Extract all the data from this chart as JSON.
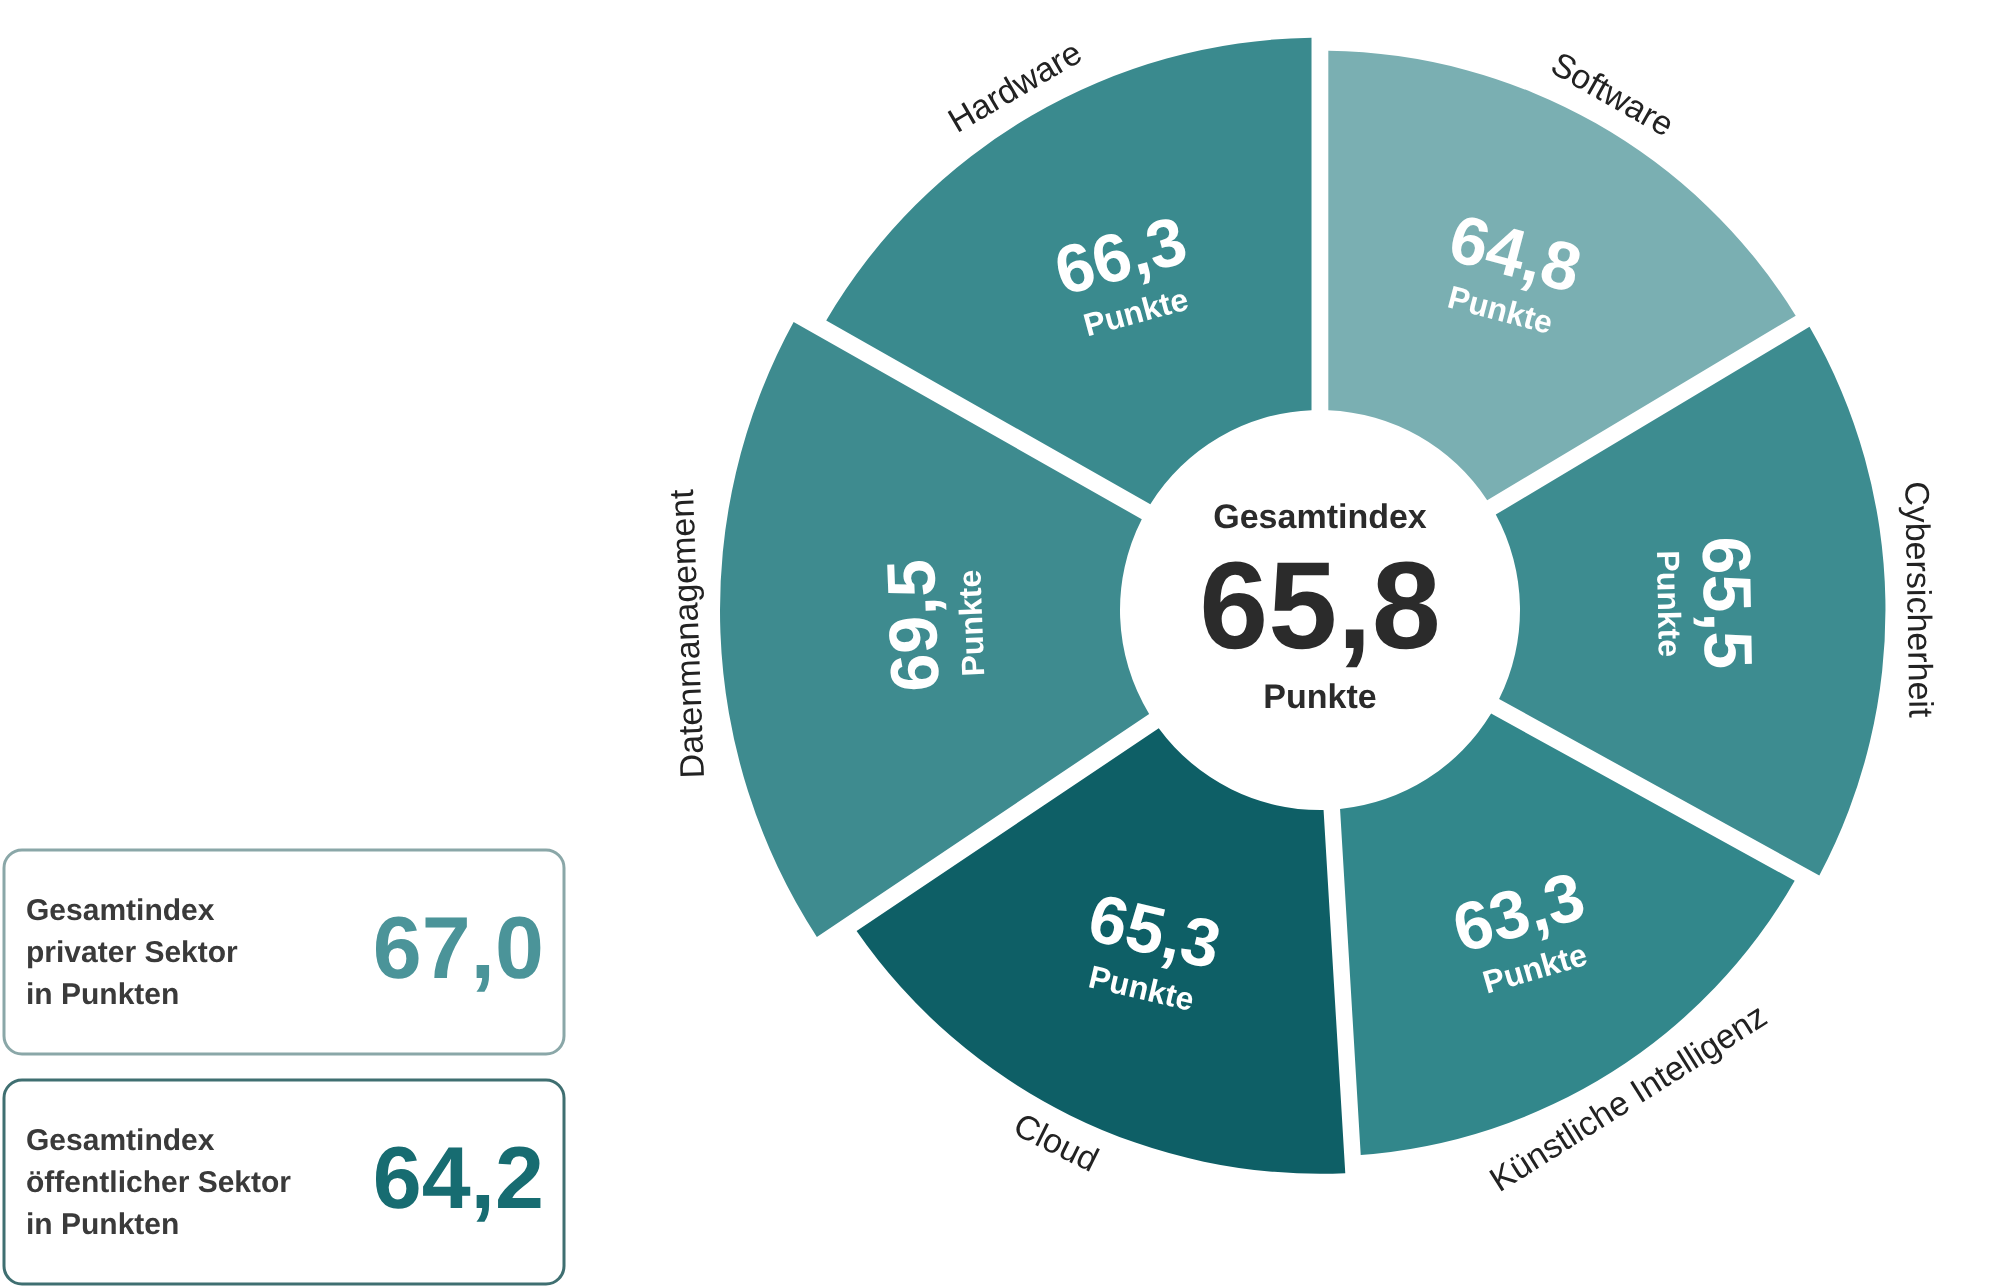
{
  "chart_data": {
    "type": "donut",
    "categories": [
      "Hardware",
      "Software",
      "Cybersicherheit",
      "Künstliche Intelligenz",
      "Cloud",
      "Datenmanagement"
    ],
    "values": [
      66.3,
      64.8,
      65.5,
      63.3,
      65.3,
      69.5
    ],
    "colors": [
      "#3a8a8e",
      "#7aafb2",
      "#3d8c90",
      "#32878b",
      "#0e5f66",
      "#3e8b8f"
    ],
    "value_labels": [
      "66,3",
      "64,8",
      "65,5",
      "63,3",
      "65,3",
      "69,5"
    ],
    "annotations": [
      "Gesamtindex\n65,8\nPunkte",
      "Punkte",
      "Gesamtindex\nprivater Sektor\nin Punkten",
      "67,0",
      "Gesamtindex\nöffentlicher Sektor\nin Punkten",
      "64,2"
    ]
  }
}
